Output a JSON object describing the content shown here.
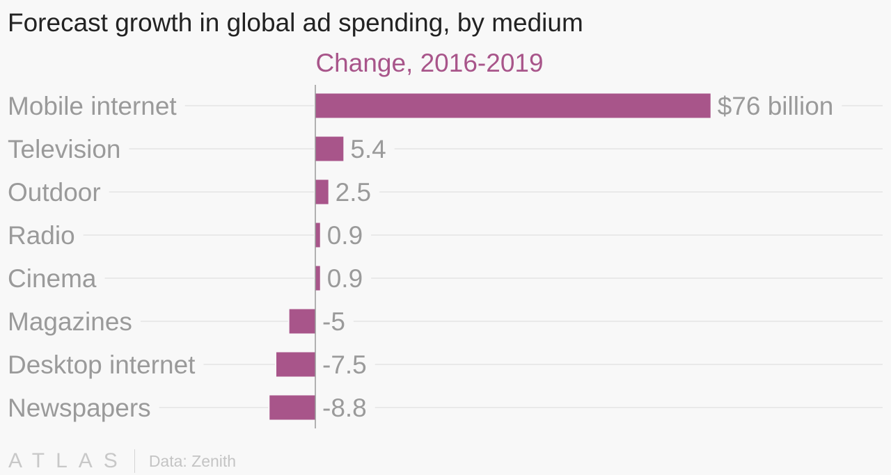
{
  "title": "Forecast growth in global ad spending, by medium",
  "chart_data": {
    "type": "bar",
    "orientation": "horizontal",
    "subtitle": "Change, 2016-2019",
    "categories": [
      "Mobile internet",
      "Television",
      "Outdoor",
      "Radio",
      "Cinema",
      "Magazines",
      "Desktop internet",
      "Newspapers"
    ],
    "values": [
      76,
      5.4,
      2.5,
      0.9,
      0.9,
      -5,
      -7.5,
      -8.8
    ],
    "value_labels": [
      "$76 billion",
      "5.4",
      "2.5",
      "0.9",
      "0.9",
      "-5",
      "-7.5",
      "-8.8"
    ],
    "bar_color": "#a8558a",
    "xlim": [
      -8.8,
      76
    ],
    "grid": true,
    "legend": false
  },
  "footer": {
    "logo": "ATLAS",
    "source": "Data: Zenith"
  }
}
